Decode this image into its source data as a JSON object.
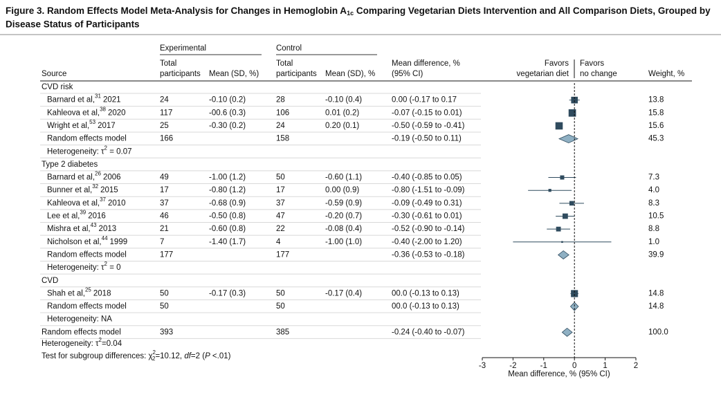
{
  "chart_data": {
    "type": "forest",
    "title": [
      "Figure 3. Random Effects Model Meta-Analysis for Changes in Hemoglobin A",
      "1c",
      " Comparing Vegetarian Diets Intervention and All Comparison Diets, Grouped by",
      "Disease Status of Participants"
    ],
    "headers": {
      "experimental": "Experimental",
      "control": "Control",
      "total": [
        "Total",
        "participants"
      ],
      "exp_mean": "Mean (SD, %)",
      "ctrl_mean": "Mean (SD), %",
      "md": [
        "Mean difference, %",
        "(95% CI)"
      ],
      "source": "Source",
      "weight": "Weight, %",
      "favors_left": [
        "Favors",
        "vegetarian diet"
      ],
      "favors_right": [
        "Favors",
        "no change"
      ]
    },
    "groups": [
      {
        "name": "CVD risk",
        "studies": [
          {
            "author": "Barnard et al,",
            "ref": "31",
            "year": "2021",
            "exp_n": 24,
            "exp_mean": "-0.10 (0.2)",
            "ctrl_n": 28,
            "ctrl_mean": "-0.10 (0.4)",
            "md": 0.0,
            "lo": -0.17,
            "hi": 0.17,
            "md_label": "0.00 (-0.17 to 0.17",
            "weight": 13.8
          },
          {
            "author": "Kahleova et al,",
            "ref": "38",
            "year": "2020",
            "exp_n": 117,
            "exp_mean": "-00.6 (0.3)",
            "ctrl_n": 106,
            "ctrl_mean": "0.01 (0.2)",
            "md": -0.07,
            "lo": -0.15,
            "hi": 0.01,
            "md_label": "-0.07 (-0.15 to 0.01)",
            "weight": 15.8
          },
          {
            "author": "Wright et al,",
            "ref": "53",
            "year": "2017",
            "exp_n": 25,
            "exp_mean": "-0.30 (0.2)",
            "ctrl_n": 24,
            "ctrl_mean": "0.20 (0.1)",
            "md": -0.5,
            "lo": -0.59,
            "hi": -0.41,
            "md_label": "-0.50 (-0.59 to -0.41)",
            "weight": 15.6
          }
        ],
        "pooled": {
          "label": "Random effects model",
          "exp_n": 166,
          "ctrl_n": 158,
          "md": -0.19,
          "lo": -0.5,
          "hi": 0.11,
          "md_label": "-0.19 (-0.50 to 0.11)",
          "weight": 45.3
        },
        "het": [
          "Heterogeneity: τ",
          "2",
          " = 0.07"
        ]
      },
      {
        "name": "Type 2 diabetes",
        "studies": [
          {
            "author": "Barnard et al,",
            "ref": "26",
            "year": "2006",
            "exp_n": 49,
            "exp_mean": "-1.00 (1.2)",
            "ctrl_n": 50,
            "ctrl_mean": "-0.60 (1.1)",
            "md": -0.4,
            "lo": -0.85,
            "hi": 0.05,
            "md_label": "-0.40 (-0.85 to 0.05)",
            "weight": 7.3
          },
          {
            "author": "Bunner et al,",
            "ref": "32",
            "year": "2015",
            "exp_n": 17,
            "exp_mean": "-0.80 (1.2)",
            "ctrl_n": 17,
            "ctrl_mean": "0.00 (0.9)",
            "md": -0.8,
            "lo": -1.51,
            "hi": -0.09,
            "md_label": "-0.80 (-1.51 to -0.09)",
            "weight": {
              "value": 4,
              "label": "4.0"
            }
          },
          {
            "author": "Kahleova et al,",
            "ref": "37",
            "year": "2010",
            "exp_n": 37,
            "exp_mean": "-0.68 (0.9)",
            "ctrl_n": 37,
            "ctrl_mean": "-0.59 (0.9)",
            "md": -0.09,
            "lo": -0.49,
            "hi": 0.31,
            "md_label": "-0.09 (-0.49 to 0.31)",
            "weight": 8.3
          },
          {
            "author": "Lee et al,",
            "ref": "39",
            "year": "2016",
            "exp_n": 46,
            "exp_mean": "-0.50 (0.8)",
            "ctrl_n": 47,
            "ctrl_mean": "-0.20 (0.7)",
            "md": -0.3,
            "lo": -0.61,
            "hi": 0.01,
            "md_label": "-0.30 (-0.61 to 0.01)",
            "weight": 10.5
          },
          {
            "author": "Mishra et al,",
            "ref": "43",
            "year": "2013",
            "exp_n": 21,
            "exp_mean": "-0.60 (0.8)",
            "ctrl_n": 22,
            "ctrl_mean": "-0.08 (0.4)",
            "md": -0.52,
            "lo": -0.9,
            "hi": -0.14,
            "md_label": "-0.52 (-0.90 to -0.14)",
            "weight": 8.8
          },
          {
            "author": "Nicholson et al,",
            "ref": "44",
            "year": "1999",
            "exp_n": 7,
            "exp_mean": "-1.40 (1.7)",
            "ctrl_n": 4,
            "ctrl_mean": "-1.00 (1.0)",
            "md": -0.4,
            "lo": -2.0,
            "hi": 1.2,
            "md_label": "-0.40 (-2.00 to 1.20)",
            "weight": {
              "value": 1,
              "label": "1.0"
            }
          }
        ],
        "pooled": {
          "label": "Random effects model",
          "exp_n": 177,
          "ctrl_n": 177,
          "md": -0.36,
          "lo": -0.53,
          "hi": -0.18,
          "md_label": "-0.36 (-0.53 to -0.18)",
          "weight": 39.9
        },
        "het": [
          "Heterogeneity: τ",
          "2",
          " = 0"
        ]
      },
      {
        "name": "CVD",
        "studies": [
          {
            "author": "Shah et al,",
            "ref": "25",
            "year": "2018",
            "exp_n": 50,
            "exp_mean": "-0.17 (0.3)",
            "ctrl_n": 50,
            "ctrl_mean": "-0.17 (0.4)",
            "md": 0,
            "lo": -0.13,
            "hi": 0.13,
            "md_label": "00.0 (-0.13 to 0.13)",
            "weight": 14.8
          }
        ],
        "pooled": {
          "label": "Random effects model",
          "exp_n": 50,
          "ctrl_n": 50,
          "md": 0,
          "lo": -0.13,
          "hi": 0.13,
          "md_label": "00.0 (-0.13 to 0.13)",
          "weight": 14.8
        },
        "het": [
          "Heterogeneity: NA"
        ]
      }
    ],
    "overall": {
      "label": "Random effects model",
      "exp_n": 393,
      "ctrl_n": 385,
      "md": -0.24,
      "lo": -0.4,
      "hi": -0.07,
      "md_label": "-0.24 (-0.40 to -0.07)",
      "weight": {
        "value": 100,
        "label": "100.0"
      }
    },
    "overall_het": [
      "Heterogeneity: τ",
      "2",
      "=0.04"
    ],
    "subgroup_test": [
      "Test for subgroup differences: χ",
      "2",
      "2",
      "=10.12, ",
      "df",
      "=2 (",
      "P",
      " <.01)"
    ],
    "xlabel": "Mean difference, % (95% CI)",
    "xlim": [
      -3,
      2
    ],
    "xticks": [
      -3,
      -2,
      -1,
      0,
      1,
      2
    ],
    "color": "#2f4b5e"
  }
}
